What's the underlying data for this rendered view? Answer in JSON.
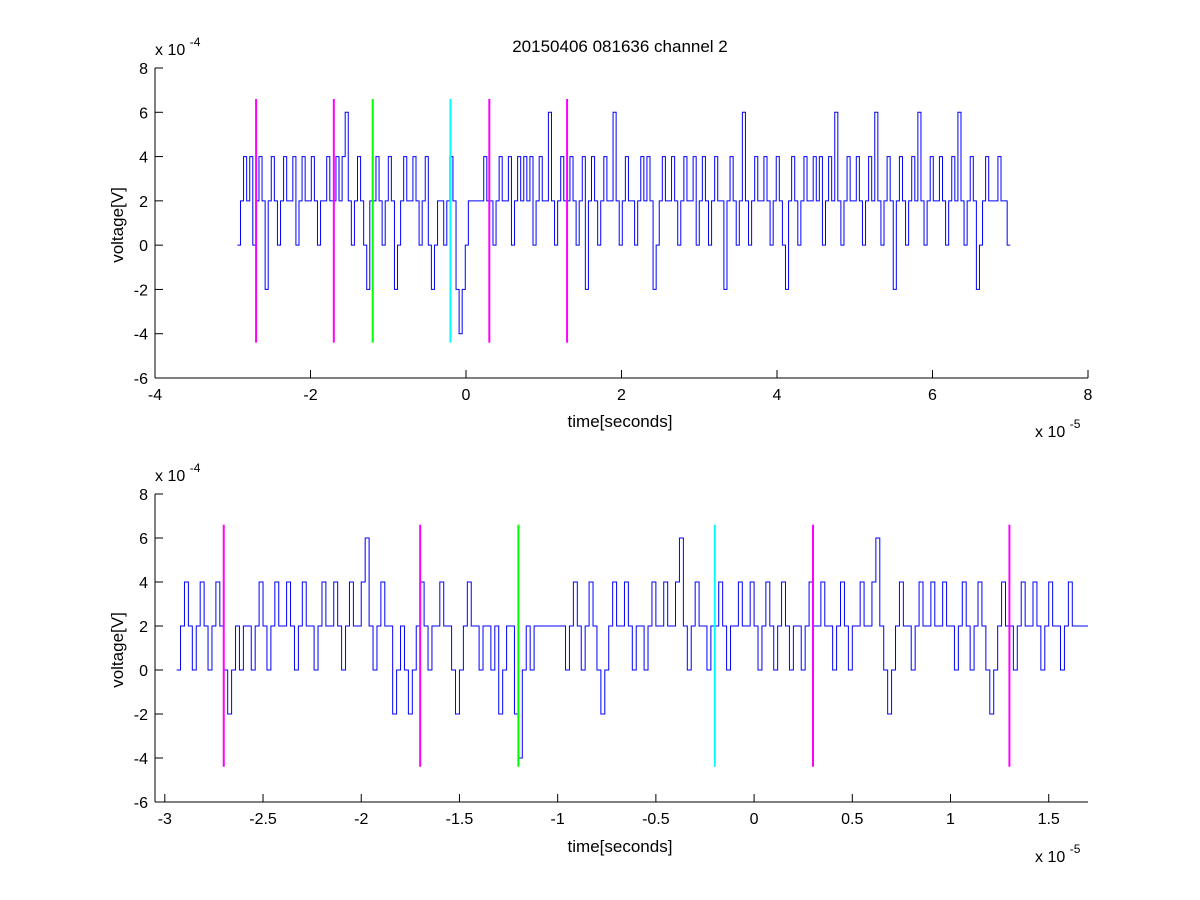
{
  "figure": {
    "title": "20150406 081636 channel 2",
    "background": "#ffffff"
  },
  "chart_data": [
    {
      "type": "line",
      "xlabel": "time[seconds]",
      "ylabel": "voltage[V]",
      "x_exponent_label": "x 10",
      "x_exponent": "-5",
      "y_exponent_label": "x 10",
      "y_exponent": "-4",
      "xlim": [
        -4e-05,
        8e-05
      ],
      "ylim": [
        -0.0006,
        0.0008
      ],
      "xticks": [
        -4e-05,
        -2e-05,
        0,
        2e-05,
        4e-05,
        6e-05,
        8e-05
      ],
      "xtick_labels": [
        "-4",
        "-2",
        "0",
        "2",
        "4",
        "6",
        "8"
      ],
      "yticks": [
        -0.0006,
        -0.0004,
        -0.0002,
        0,
        0.0002,
        0.0004,
        0.0006,
        0.0008
      ],
      "ytick_labels": [
        "-6",
        "-4",
        "-2",
        "0",
        "2",
        "4",
        "6",
        "8"
      ],
      "series": [
        {
          "color": "#0000ff",
          "x_start": -2.94e-05,
          "x_end": 7e-05,
          "sample_levels": [
            0.0,
            0.0002,
            0.0004,
            0.0002,
            0.0004,
            0.0,
            0.0002,
            0.0004,
            0.0002,
            -0.0002,
            0.0002,
            0.0004,
            0.0002,
            0.0,
            0.0002,
            0.0004,
            0.0002,
            0.0002,
            0.0004,
            0.0,
            0.0002,
            0.0004,
            0.0002,
            0.0002,
            0.0004,
            0.0002,
            0.0,
            0.0002,
            0.0002,
            0.0004,
            0.0002,
            0.0002,
            0.0004,
            0.0002,
            0.0004,
            0.0006,
            0.0002,
            0.0,
            0.0002,
            0.0004,
            0.0002,
            0.0,
            -0.0002,
            0.0002,
            0.0002,
            0.0004,
            0.0002,
            0.0,
            0.0002,
            0.0004,
            0.0002,
            -0.0002,
            0.0,
            0.0002,
            0.0004,
            0.0002,
            0.0002,
            0.0004,
            0.0002,
            0.0,
            0.0002,
            0.0004,
            0.0,
            -0.0002,
            0.0,
            0.0002,
            0.0002,
            0.0,
            0.0002,
            0.0004,
            0.0002,
            -0.0002,
            -0.0004,
            -0.0002,
            0.0,
            0.0002,
            0.0002,
            0.0002,
            0.0002,
            0.0002,
            0.0004,
            0.0002,
            0.0002,
            0.0,
            0.0002,
            0.0004,
            0.0002,
            0.0002,
            0.0004,
            0.0,
            0.0002,
            0.0004,
            0.0002,
            0.0004,
            0.0002,
            0.0004,
            0.0,
            0.0002,
            0.0004,
            0.0002,
            0.0002,
            0.0006,
            0.0002,
            0.0,
            0.0002,
            0.0004,
            0.0002,
            0.0002,
            0.0004,
            0.0002,
            0.0,
            0.0002,
            0.0004,
            -0.0002,
            0.0002,
            0.0004,
            0.0002,
            0.0,
            0.0002,
            0.0004,
            0.0002,
            0.0002,
            0.0006,
            0.0002,
            0.0,
            0.0002,
            0.0004,
            0.0002,
            0.0002,
            0.0,
            0.0002,
            0.0004,
            0.0002,
            0.0004,
            0.0002,
            -0.0002,
            0.0,
            0.0002,
            0.0004,
            0.0002,
            0.0002,
            0.0004,
            0.0002,
            0.0,
            0.0002,
            0.0004,
            0.0002,
            0.0002,
            0.0004,
            0.0,
            0.0002,
            0.0004,
            0.0002,
            0.0,
            0.0002,
            0.0004,
            0.0002,
            0.0002,
            -0.0002,
            0.0002,
            0.0004,
            0.0002,
            0.0,
            0.0002,
            0.0006,
            0.0002,
            0.0,
            0.0002,
            0.0004,
            0.0002,
            0.0002,
            0.0004,
            0.0002,
            0.0,
            0.0002,
            0.0004,
            0.0002,
            0.0,
            -0.0002,
            0.0002,
            0.0004,
            0.0002,
            0.0,
            0.0002,
            0.0004,
            0.0002,
            0.0002,
            0.0004,
            0.0002,
            0.0004,
            0.0,
            0.0002,
            0.0004,
            0.0002,
            0.0006,
            0.0002,
            0.0,
            0.0002,
            0.0004,
            0.0002,
            0.0002,
            0.0004,
            0.0002,
            0.0,
            0.0002,
            0.0004,
            0.0002,
            0.0006,
            0.0002,
            0.0,
            0.0002,
            0.0004,
            0.0002,
            -0.0002,
            0.0002,
            0.0004,
            0.0002,
            0.0,
            0.0002,
            0.0004,
            0.0002,
            0.0006,
            0.0002,
            0.0,
            0.0002,
            0.0004,
            0.0002,
            0.0002,
            0.0004,
            0.0002,
            0.0,
            0.0002,
            0.0004,
            0.0002,
            0.0006,
            0.0002,
            0.0,
            0.0002,
            0.0004,
            0.0002,
            -0.0002,
            0.0,
            0.0002,
            0.0004,
            0.0002,
            0.0002,
            0.0002,
            0.0004,
            0.0002,
            0.0002,
            0.0
          ]
        }
      ],
      "vertical_markers": [
        {
          "x": -2.7e-05,
          "color": "#ff00ff",
          "y_range": [
            -0.00044,
            0.00066
          ]
        },
        {
          "x": -1.7e-05,
          "color": "#ff00ff",
          "y_range": [
            -0.00044,
            0.00066
          ]
        },
        {
          "x": -1.2e-05,
          "color": "#00ff00",
          "y_range": [
            -0.00044,
            0.00066
          ]
        },
        {
          "x": -2e-06,
          "color": "#00ffff",
          "y_range": [
            -0.00044,
            0.00066
          ]
        },
        {
          "x": 3e-06,
          "color": "#ff00ff",
          "y_range": [
            -0.00044,
            0.00066
          ]
        },
        {
          "x": 1.3e-05,
          "color": "#ff00ff",
          "y_range": [
            -0.00044,
            0.00066
          ]
        }
      ]
    },
    {
      "type": "line",
      "xlabel": "time[seconds]",
      "ylabel": "voltage[V]",
      "x_exponent_label": "x 10",
      "x_exponent": "-5",
      "y_exponent_label": "x 10",
      "y_exponent": "-4",
      "xlim": [
        -3.05e-05,
        1.7e-05
      ],
      "ylim": [
        -0.0006,
        0.0008
      ],
      "xticks": [
        -3e-05,
        -2.5e-05,
        -2e-05,
        -1.5e-05,
        -1e-05,
        -5e-06,
        0,
        5e-06,
        1e-05,
        1.5e-05
      ],
      "xtick_labels": [
        "-3",
        "-2.5",
        "-2",
        "-1.5",
        "-1",
        "-0.5",
        "0",
        "0.5",
        "1",
        "1.5"
      ],
      "yticks": [
        -0.0006,
        -0.0004,
        -0.0002,
        0,
        0.0002,
        0.0004,
        0.0006,
        0.0008
      ],
      "ytick_labels": [
        "-6",
        "-4",
        "-2",
        "0",
        "2",
        "4",
        "6",
        "8"
      ],
      "series": [
        {
          "color": "#0000ff",
          "x_start": -2.94e-05,
          "x_end": 1.7e-05,
          "sample_levels": [
            0.0,
            0.0002,
            0.0004,
            0.0002,
            0.0,
            0.0002,
            0.0004,
            0.0002,
            0.0,
            0.0002,
            0.0004,
            0.0002,
            0.0,
            -0.0002,
            0.0,
            0.0002,
            0.0,
            0.0002,
            0.0002,
            0.0,
            0.0002,
            0.0004,
            0.0002,
            0.0,
            0.0002,
            0.0004,
            0.0002,
            0.0002,
            0.0004,
            0.0002,
            0.0,
            0.0002,
            0.0004,
            0.0002,
            0.0002,
            0.0,
            0.0002,
            0.0004,
            0.0002,
            0.0002,
            0.0004,
            0.0002,
            0.0,
            0.0002,
            0.0004,
            0.0002,
            0.0002,
            0.0004,
            0.0006,
            0.0002,
            0.0,
            0.0002,
            0.0004,
            0.0002,
            0.0002,
            -0.0002,
            0.0,
            0.0002,
            0.0,
            -0.0002,
            0.0,
            0.0002,
            0.0004,
            0.0002,
            0.0,
            0.0002,
            0.0002,
            0.0004,
            0.0002,
            0.0002,
            0.0,
            -0.0002,
            0.0,
            0.0002,
            0.0004,
            0.0002,
            0.0002,
            0.0,
            0.0002,
            0.0002,
            0.0,
            0.0002,
            -0.0002,
            0.0,
            0.0002,
            0.0002,
            -0.0002,
            -0.0004,
            0.0,
            0.0002,
            0.0,
            0.0002,
            0.0002,
            0.0002,
            0.0002,
            0.0002,
            0.0002,
            0.0002,
            0.0002,
            0.0,
            0.0002,
            0.0004,
            0.0002,
            0.0,
            0.0002,
            0.0004,
            0.0002,
            0.0,
            -0.0002,
            0.0,
            0.0002,
            0.0004,
            0.0002,
            0.0002,
            0.0004,
            0.0002,
            0.0,
            0.0002,
            0.0002,
            0.0,
            0.0002,
            0.0004,
            0.0002,
            0.0002,
            0.0004,
            0.0002,
            0.0002,
            0.0004,
            0.0006,
            0.0002,
            0.0,
            0.0002,
            0.0004,
            0.0002,
            0.0002,
            0.0,
            0.0002,
            0.0002,
            0.0004,
            0.0002,
            0.0,
            0.0002,
            0.0002,
            0.0004,
            0.0002,
            0.0002,
            0.0004,
            0.0002,
            0.0,
            0.0002,
            0.0004,
            0.0002,
            0.0,
            0.0002,
            0.0004,
            0.0002,
            0.0,
            0.0002,
            0.0002,
            0.0,
            0.0002,
            0.0004,
            0.0002,
            0.0002,
            0.0004,
            0.0002,
            0.0002,
            0.0,
            0.0002,
            0.0004,
            0.0002,
            0.0,
            0.0002,
            0.0002,
            0.0004,
            0.0002,
            0.0002,
            0.0004,
            0.0006,
            0.0002,
            0.0,
            -0.0002,
            0.0,
            0.0002,
            0.0004,
            0.0002,
            0.0002,
            0.0,
            0.0002,
            0.0004,
            0.0002,
            0.0002,
            0.0004,
            0.0002,
            0.0002,
            0.0004,
            0.0002,
            0.0002,
            0.0,
            0.0002,
            0.0004,
            0.0002,
            0.0,
            0.0002,
            0.0004,
            0.0002,
            0.0,
            -0.0002,
            0.0,
            0.0002,
            0.0004,
            0.0002,
            0.0002,
            0.0,
            0.0002,
            0.0004,
            0.0002,
            0.0002,
            0.0004,
            0.0002,
            0.0,
            0.0002,
            0.0004,
            0.0002,
            0.0002,
            0.0,
            0.0002,
            0.0004,
            0.0002,
            0.0002,
            0.0002,
            0.0002
          ]
        }
      ],
      "vertical_markers": [
        {
          "x": -2.7e-05,
          "color": "#ff00ff",
          "y_range": [
            -0.00044,
            0.00066
          ]
        },
        {
          "x": -1.7e-05,
          "color": "#ff00ff",
          "y_range": [
            -0.00044,
            0.00066
          ]
        },
        {
          "x": -1.2e-05,
          "color": "#00ff00",
          "y_range": [
            -0.00044,
            0.00066
          ]
        },
        {
          "x": -2e-06,
          "color": "#00ffff",
          "y_range": [
            -0.00044,
            0.00066
          ]
        },
        {
          "x": 3e-06,
          "color": "#ff00ff",
          "y_range": [
            -0.00044,
            0.00066
          ]
        },
        {
          "x": 1.3e-05,
          "color": "#ff00ff",
          "y_range": [
            -0.00044,
            0.00066
          ]
        }
      ]
    }
  ]
}
